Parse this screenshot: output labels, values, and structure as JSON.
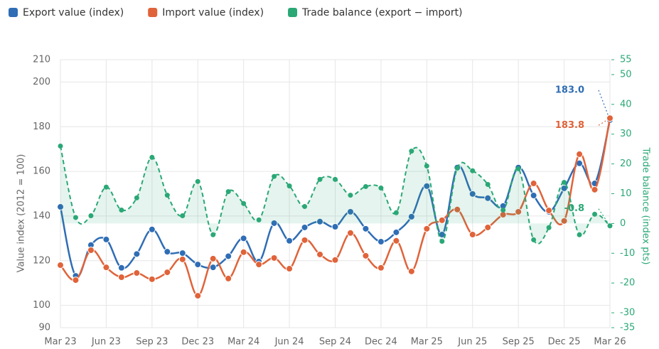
{
  "chart_data": {
    "type": "line",
    "y_label": "Value index (2012 = 100)",
    "y2_label": "Trade balance (index pts)",
    "categories": [
      "Mar 23",
      null,
      null,
      "Jun 23",
      null,
      null,
      "Sep 23",
      null,
      null,
      "Dec 23",
      null,
      null,
      "Mar 24",
      null,
      null,
      "Jun 24",
      null,
      null,
      "Sep 24",
      null,
      null,
      "Dec 24",
      null,
      null,
      "Mar 25",
      null,
      null,
      "Jun 25",
      null,
      null,
      "Sep 25",
      null,
      null,
      "Dec 25",
      null,
      null,
      "Mar 26"
    ],
    "series": [
      {
        "name": "Export value (index)",
        "color": "#2f6db5",
        "axis": "y",
        "values": [
          144.1,
          113.2,
          127,
          129.5,
          116.8,
          123,
          134,
          124,
          123.4,
          118.3,
          117,
          122,
          130,
          119.6,
          136.8,
          128.9,
          134.9,
          137.5,
          135.2,
          141.9,
          134.3,
          128.5,
          132.7,
          139.7,
          153.4,
          131.7,
          161.7,
          149.9,
          148,
          144.5,
          161.7,
          149.2,
          141.9,
          152.4,
          163.6,
          154.6,
          183.0
        ],
        "value_labels": [
          null,
          null,
          null,
          null,
          null,
          null,
          null,
          null,
          null,
          null,
          null,
          null,
          null,
          null,
          null,
          null,
          null,
          null,
          null,
          null,
          null,
          null,
          null,
          null,
          null,
          null,
          null,
          null,
          null,
          null,
          null,
          null,
          null,
          null,
          null,
          null,
          "183.0"
        ]
      },
      {
        "name": "Import value (index)",
        "color": "#e0633a",
        "axis": "y",
        "values": [
          118,
          111.3,
          124.7,
          117,
          112.6,
          114.5,
          111.7,
          114.8,
          120.6,
          104.3,
          120.9,
          112,
          123.8,
          118.3,
          121.2,
          116.4,
          129.2,
          122.8,
          120.3,
          132.4,
          122.2,
          116.8,
          128.9,
          115.2,
          134.3,
          138.1,
          142.9,
          131.7,
          134.9,
          140.6,
          141.9,
          154.6,
          142.5,
          137.8,
          167.7,
          151.8,
          183.8
        ],
        "value_labels": [
          null,
          null,
          null,
          null,
          null,
          null,
          null,
          null,
          null,
          null,
          null,
          null,
          null,
          null,
          null,
          null,
          null,
          null,
          null,
          null,
          null,
          null,
          null,
          null,
          null,
          null,
          null,
          null,
          null,
          null,
          null,
          null,
          null,
          null,
          null,
          null,
          "183.8"
        ]
      },
      {
        "name": "Trade balance (export − import)",
        "color": "#2aa876",
        "axis": "y2",
        "dashed": true,
        "fill": true,
        "values": [
          26,
          2,
          2.6,
          12.2,
          4.5,
          8.6,
          22.2,
          9.5,
          2.6,
          14.1,
          -3.8,
          10.7,
          6.7,
          1.2,
          15.8,
          12.6,
          5.7,
          14.8,
          14.8,
          9.5,
          12.4,
          11.9,
          3.6,
          24.3,
          19.3,
          -6,
          18.6,
          17.7,
          13.1,
          4.5,
          18.4,
          -5.5,
          -1.4,
          13.8,
          -3.8,
          3.1,
          -0.8
        ],
        "value_labels": [
          null,
          null,
          null,
          null,
          null,
          null,
          null,
          null,
          null,
          null,
          null,
          null,
          null,
          null,
          null,
          null,
          null,
          null,
          null,
          null,
          null,
          null,
          null,
          null,
          null,
          null,
          null,
          null,
          null,
          null,
          null,
          null,
          null,
          null,
          null,
          null,
          "-0.8"
        ]
      }
    ],
    "ylim": [
      90,
      210
    ],
    "yticks": [
      90,
      100,
      120,
      140,
      160,
      180,
      200,
      210
    ],
    "y2lim": [
      -35,
      55
    ],
    "y2ticks": [
      -35,
      -30,
      -20,
      -10,
      0,
      10,
      20,
      30,
      40,
      50,
      55
    ],
    "grid": true,
    "legend": "top-left"
  }
}
